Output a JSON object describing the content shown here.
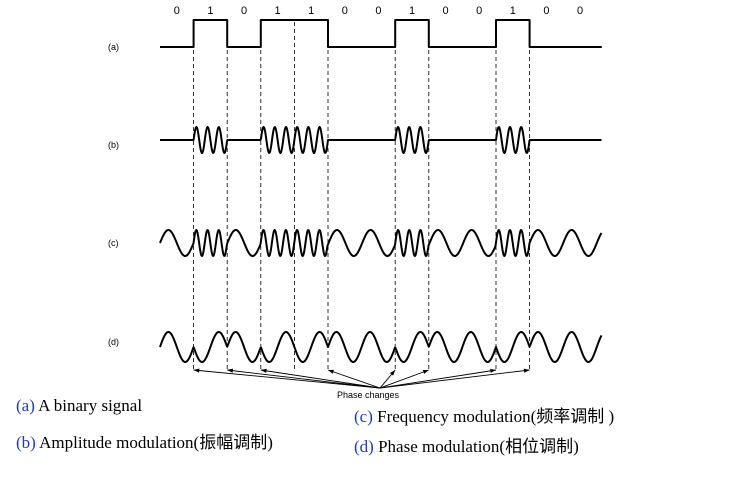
{
  "bits": [
    "0",
    "1",
    "0",
    "1",
    "1",
    "0",
    "0",
    "1",
    "0",
    "0",
    "1",
    "0",
    "0"
  ],
  "rows": {
    "a": "(a)",
    "b": "(b)",
    "c": "(c)",
    "d": "(d)"
  },
  "phase_label": "Phase changes",
  "captions": {
    "a": {
      "tag": "(a)",
      "text": " A binary signal"
    },
    "b": {
      "tag": "(b)",
      "text": " Amplitude modulation(振幅调制)"
    },
    "c": {
      "tag": "(c)",
      "text": " Frequency modulation(频率调制 )"
    },
    "d": {
      "tag": "(d)",
      "text": " Phase modulation(相位调制)"
    }
  }
}
